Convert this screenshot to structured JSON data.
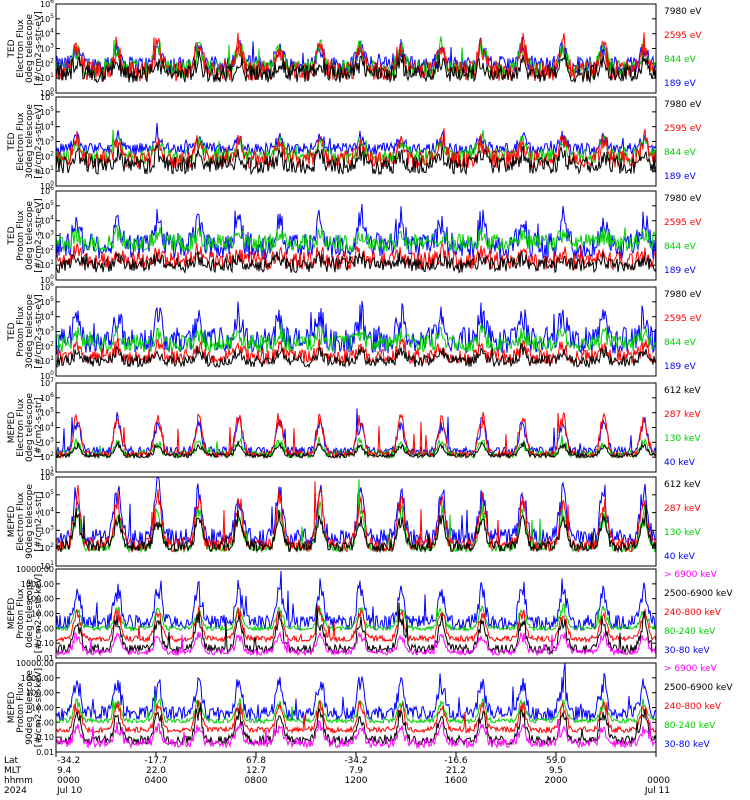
{
  "chart_data": [
    {
      "type": "line",
      "ylabel": [
        "TED",
        "Electron Flux",
        "0deg telescope",
        "[#/cm2-s-str-eV]"
      ],
      "yscale": "log",
      "yticks": [
        "10^0",
        "10^1",
        "10^2",
        "10^3",
        "10^4",
        "10^5",
        "10^6"
      ],
      "ylim": [
        1,
        1000000
      ],
      "series": [
        {
          "name": "7980 eV",
          "color": "#000000",
          "base": 1.3,
          "spread": 0.6,
          "peak": 2.3
        },
        {
          "name": "2595 eV",
          "color": "#ff0000",
          "base": 1.5,
          "spread": 0.7,
          "peak": 3.6
        },
        {
          "name": "844 eV",
          "color": "#00d000",
          "base": 1.6,
          "spread": 0.6,
          "peak": 3.4
        },
        {
          "name": "189 eV",
          "color": "#0000ff",
          "base": 1.9,
          "spread": 0.6,
          "peak": 3.3
        }
      ]
    },
    {
      "type": "line",
      "ylabel": [
        "TED",
        "Electron Flux",
        "30deg telescope",
        "[#/cm2-s-str-eV]"
      ],
      "yscale": "log",
      "yticks": [
        "10^0",
        "10^1",
        "10^2",
        "10^3",
        "10^4",
        "10^5",
        "10^6"
      ],
      "ylim": [
        1,
        1000000
      ],
      "series": [
        {
          "name": "7980 eV",
          "color": "#000000",
          "base": 1.4,
          "spread": 0.6,
          "peak": 2.3
        },
        {
          "name": "2595 eV",
          "color": "#ff0000",
          "base": 1.8,
          "spread": 0.6,
          "peak": 3.3
        },
        {
          "name": "844 eV",
          "color": "#00d000",
          "base": 2.0,
          "spread": 0.5,
          "peak": 3.2
        },
        {
          "name": "189 eV",
          "color": "#0000ff",
          "base": 2.5,
          "spread": 0.4,
          "peak": 3.4
        }
      ]
    },
    {
      "type": "line",
      "ylabel": [
        "TED",
        "Proton Flux",
        "0deg telescope",
        "[#/cm2-s-str-eV]"
      ],
      "yscale": "log",
      "yticks": [
        "10^0",
        "10^1",
        "10^2",
        "10^3",
        "10^4",
        "10^5",
        "10^6"
      ],
      "ylim": [
        1,
        1000000
      ],
      "series": [
        {
          "name": "7980 eV",
          "color": "#000000",
          "base": 1.0,
          "spread": 0.5,
          "peak": 1.6
        },
        {
          "name": "2595 eV",
          "color": "#ff0000",
          "base": 1.3,
          "spread": 0.6,
          "peak": 2.0
        },
        {
          "name": "844 eV",
          "color": "#00d000",
          "base": 2.5,
          "spread": 0.6,
          "peak": 3.2
        },
        {
          "name": "189 eV",
          "color": "#0000ff",
          "base": 2.3,
          "spread": 0.9,
          "peak": 4.5
        }
      ]
    },
    {
      "type": "line",
      "ylabel": [
        "TED",
        "Proton Flux",
        "30deg telescope",
        "[#/cm2-s-str-eV]"
      ],
      "yscale": "log",
      "yticks": [
        "10^0",
        "10^1",
        "10^2",
        "10^3",
        "10^4",
        "10^5",
        "10^6"
      ],
      "ylim": [
        1,
        1000000
      ],
      "series": [
        {
          "name": "7980 eV",
          "color": "#000000",
          "base": 1.0,
          "spread": 0.4,
          "peak": 1.8
        },
        {
          "name": "2595 eV",
          "color": "#ff0000",
          "base": 1.3,
          "spread": 0.5,
          "peak": 2.2
        },
        {
          "name": "844 eV",
          "color": "#00d000",
          "base": 2.2,
          "spread": 0.6,
          "peak": 3.0
        },
        {
          "name": "189 eV",
          "color": "#0000ff",
          "base": 2.4,
          "spread": 0.9,
          "peak": 4.4
        }
      ]
    },
    {
      "type": "line",
      "ylabel": [
        "MEPED",
        "Electron Flux",
        "0deg telescope",
        "[#/cm2-s-str]"
      ],
      "yscale": "log",
      "yticks": [
        "10^1",
        "10^2",
        "10^3",
        "10^4",
        "10^5",
        "10^6",
        "10^7"
      ],
      "ylim": [
        10,
        10000000
      ],
      "series": [
        {
          "name": "612 keV",
          "color": "#000000",
          "base": 2.1,
          "spread": 0.15,
          "peak": 3.0
        },
        {
          "name": "287 keV",
          "color": "#ff0000",
          "base": 2.2,
          "spread": 0.2,
          "peak": 5.3
        },
        {
          "name": "130 keV",
          "color": "#00d000",
          "base": 2.2,
          "spread": 0.25,
          "peak": 3.2
        },
        {
          "name": "40 keV",
          "color": "#0000ff",
          "base": 2.4,
          "spread": 0.3,
          "peak": 4.8
        }
      ]
    },
    {
      "type": "line",
      "ylabel": [
        "MEPED",
        "Electron Flux",
        "90deg telescope",
        "[#/cm2-s-str]"
      ],
      "yscale": "log",
      "yticks": [
        "10^1",
        "10^2",
        "10^3",
        "10^4",
        "10^5",
        "10^6"
      ],
      "ylim": [
        10,
        1000000
      ],
      "series": [
        {
          "name": "612 keV",
          "color": "#000000",
          "base": 2.1,
          "spread": 0.3,
          "peak": 4.0
        },
        {
          "name": "287 keV",
          "color": "#ff0000",
          "base": 2.2,
          "spread": 0.4,
          "peak": 5.3
        },
        {
          "name": "130 keV",
          "color": "#00d000",
          "base": 2.0,
          "spread": 0.2,
          "peak": 4.5
        },
        {
          "name": "40 keV",
          "color": "#0000ff",
          "base": 2.6,
          "spread": 0.5,
          "peak": 5.8
        }
      ]
    },
    {
      "type": "line",
      "ylabel": [
        "MEPED",
        "Proton Flux",
        "0deg telescope",
        "[#/cm2-s-str-keV]"
      ],
      "yscale": "log",
      "yticks": [
        "0.01",
        "0.10",
        "1.00",
        "10.00",
        "100.00",
        "1000.00",
        "10000.00"
      ],
      "ylim": [
        0.01,
        10000
      ],
      "series": [
        {
          "name": "> 6900 keV",
          "color": "#ff00ff",
          "base": -1.6,
          "spread": 0.2,
          "peak": -0.2
        },
        {
          "name": "2500-6900 keV",
          "color": "#000000",
          "base": -1.4,
          "spread": 0.3,
          "peak": 1.0
        },
        {
          "name": "240-800 keV",
          "color": "#ff0000",
          "base": -0.7,
          "spread": 0.2,
          "peak": 1.5
        },
        {
          "name": "80-240 keV",
          "color": "#00d000",
          "base": 0.0,
          "spread": 0.15,
          "peak": 1.6
        },
        {
          "name": "30-80 keV",
          "color": "#0000ff",
          "base": 0.4,
          "spread": 0.5,
          "peak": 3.1
        }
      ]
    },
    {
      "type": "line",
      "ylabel": [
        "MEPED",
        "Proton Flux",
        "90deg telescope",
        "[#/cm2-s-str-keV]"
      ],
      "yscale": "log",
      "yticks": [
        "0.01",
        "0.10",
        "1.00",
        "10.00",
        "100.00",
        "1000.00",
        "10000.00"
      ],
      "ylim": [
        0.01,
        10000
      ],
      "series": [
        {
          "name": "> 6900 keV",
          "color": "#ff00ff",
          "base": -1.4,
          "spread": 0.3,
          "peak": -0.1
        },
        {
          "name": "2500-6900 keV",
          "color": "#000000",
          "base": -1.2,
          "spread": 0.3,
          "peak": 1.0
        },
        {
          "name": "240-800 keV",
          "color": "#ff0000",
          "base": -0.5,
          "spread": 0.2,
          "peak": 1.5
        },
        {
          "name": "80-240 keV",
          "color": "#00d000",
          "base": 0.1,
          "spread": 0.15,
          "peak": 1.6
        },
        {
          "name": "30-80 keV",
          "color": "#0000ff",
          "base": 0.6,
          "spread": 0.5,
          "peak": 3.2
        }
      ]
    }
  ],
  "time_axis": {
    "row_labels": [
      "Lat",
      "MLT",
      "hhmm",
      "2024"
    ],
    "columns": [
      {
        "lat": "-34.2",
        "mlt": "9.4",
        "hhmm": "0000",
        "date": "Jul 10"
      },
      {
        "lat": "-17.7",
        "mlt": "22.0",
        "hhmm": "0400",
        "date": ""
      },
      {
        "lat": "67.8",
        "mlt": "12.7",
        "hhmm": "0800",
        "date": ""
      },
      {
        "lat": "-34.2",
        "mlt": "7.9",
        "hhmm": "1200",
        "date": ""
      },
      {
        "lat": "-16.6",
        "mlt": "21.2",
        "hhmm": "1600",
        "date": ""
      },
      {
        "lat": "59.0",
        "mlt": "9.5",
        "hhmm": "2000",
        "date": ""
      },
      {
        "lat": "",
        "mlt": "",
        "hhmm": "0000",
        "date": "Jul 11"
      }
    ]
  }
}
